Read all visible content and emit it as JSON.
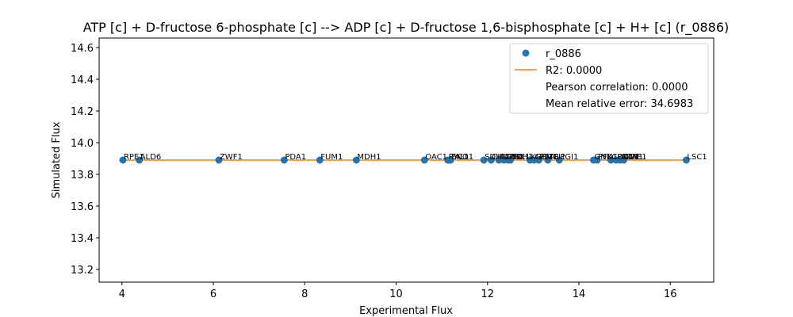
{
  "chart_data": {
    "type": "scatter",
    "title": "ATP [c] + D-fructose 6-phosphate [c] --> ADP [c] + D-fructose 1,6-bisphosphate [c] + H+ [c] (r_0886)",
    "xlabel": "Experimental Flux",
    "ylabel": "Simulated Flux",
    "xlim": [
      3.5,
      16.95
    ],
    "ylim": [
      13.12,
      14.66
    ],
    "xticks": [
      4,
      6,
      8,
      10,
      12,
      14,
      16
    ],
    "yticks": [
      13.2,
      13.4,
      13.6,
      13.8,
      14.0,
      14.2,
      14.4,
      14.6
    ],
    "xtick_labels": [
      "4",
      "6",
      "8",
      "10",
      "12",
      "14",
      "16"
    ],
    "ytick_labels": [
      "13.2",
      "13.4",
      "13.6",
      "13.8",
      "14.0",
      "14.2",
      "14.4",
      "14.6"
    ],
    "grid": false,
    "legend_position": "top-right",
    "series": [
      {
        "name": "r_0886",
        "kind": "scatter",
        "color": "#1f77b4",
        "points": [
          {
            "label": "RPE1",
            "x": 4.02,
            "y": 13.89
          },
          {
            "label": "ALD6",
            "x": 4.38,
            "y": 13.89
          },
          {
            "label": "ZWF1",
            "x": 6.12,
            "y": 13.89
          },
          {
            "label": "PDA1",
            "x": 7.55,
            "y": 13.89
          },
          {
            "label": "FUM1",
            "x": 8.33,
            "y": 13.89
          },
          {
            "label": "MDH1",
            "x": 9.13,
            "y": 13.89
          },
          {
            "label": "OAC1",
            "x": 10.62,
            "y": 13.89
          },
          {
            "label": "PYC1",
            "x": 11.13,
            "y": 13.89
          },
          {
            "label": "TAL1",
            "x": 11.17,
            "y": 13.89
          },
          {
            "label": "ENO1",
            "x": 11.19,
            "y": 13.89
          },
          {
            "label": "SDH1",
            "x": 11.92,
            "y": 13.89
          },
          {
            "label": "CIT1",
            "x": 12.08,
            "y": 13.89
          },
          {
            "label": "ACO1",
            "x": 12.25,
            "y": 13.89
          },
          {
            "label": "IDH1",
            "x": 12.36,
            "y": 13.89
          },
          {
            "label": "PGK1",
            "x": 12.45,
            "y": 13.89
          },
          {
            "label": "TDH1",
            "x": 12.5,
            "y": 13.89
          },
          {
            "label": "KGD1",
            "x": 12.93,
            "y": 13.89
          },
          {
            "label": "GPM1",
            "x": 13.02,
            "y": 13.89
          },
          {
            "label": "FBA1",
            "x": 13.12,
            "y": 13.89
          },
          {
            "label": "TPI1",
            "x": 13.32,
            "y": 13.89
          },
          {
            "label": "PGI1",
            "x": 13.57,
            "y": 13.89
          },
          {
            "label": "GND1",
            "x": 14.32,
            "y": 13.89
          },
          {
            "label": "PFK1",
            "x": 14.4,
            "y": 13.89
          },
          {
            "label": "CDC19",
            "x": 14.7,
            "y": 13.89
          },
          {
            "label": "PDC1",
            "x": 14.82,
            "y": 13.89
          },
          {
            "label": "ADH1",
            "x": 14.9,
            "y": 13.89
          },
          {
            "label": "MAE1",
            "x": 14.98,
            "y": 13.89
          },
          {
            "label": "LSC1",
            "x": 16.35,
            "y": 13.89
          }
        ]
      },
      {
        "name": "R2: 0.0000",
        "kind": "line",
        "color": "#ff7f0e",
        "points": [
          {
            "x": 4.02,
            "y": 13.89
          },
          {
            "x": 16.35,
            "y": 13.89
          }
        ]
      }
    ],
    "legend": {
      "entries": [
        {
          "text": "r_0886",
          "marker": "dot",
          "color": "#1f77b4"
        },
        {
          "text": "R2: 0.0000",
          "marker": "line",
          "color": "#ff7f0e"
        },
        {
          "text": "Pearson correlation: 0.0000",
          "marker": "none"
        },
        {
          "text": "Mean relative error: 34.6983",
          "marker": "none"
        }
      ]
    }
  }
}
